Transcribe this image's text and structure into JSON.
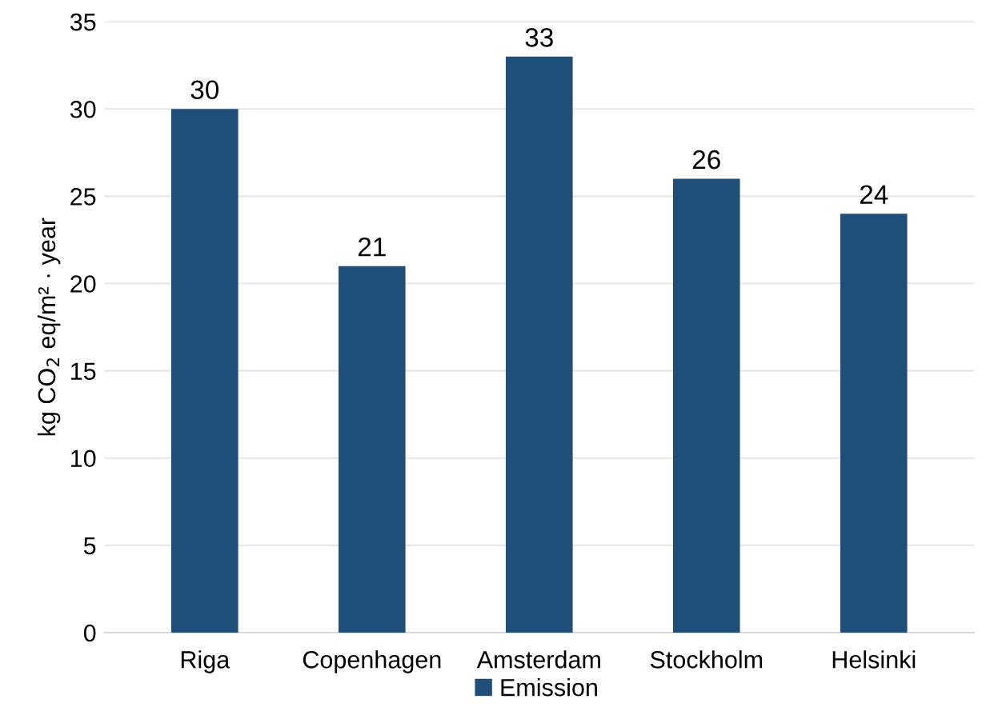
{
  "chart_data": {
    "type": "bar",
    "ylabel": "kg CO$_{2}$ eq/m² · year",
    "categories": [
      "Riga",
      "Copenhagen",
      "Amsterdam",
      "Stockholm",
      "Helsinki"
    ],
    "series": [
      {
        "name": "Emission",
        "color": "#1f4e79",
        "values": [
          30,
          21,
          33,
          26,
          24
        ]
      }
    ],
    "ylim": [
      0,
      35
    ],
    "yticks": [
      0,
      5,
      10,
      15,
      20,
      25,
      30,
      35
    ],
    "grid": "y",
    "legend": "bottom",
    "data_labels": true
  }
}
